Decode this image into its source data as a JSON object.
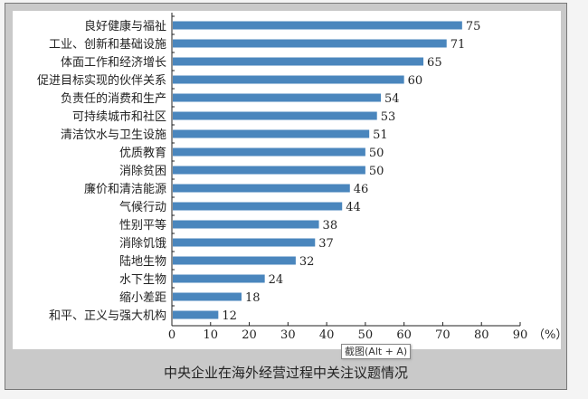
{
  "chart_data": {
    "type": "bar",
    "orientation": "horizontal",
    "title": "中央企业在海外经营过程中关注议题情况",
    "xlabel": "",
    "xunit": "（%）",
    "xlim": [
      0,
      90
    ],
    "xticks": [
      0,
      10,
      20,
      30,
      40,
      50,
      60,
      70,
      80,
      90
    ],
    "grid": false,
    "bar_color": "#4a86bd",
    "categories": [
      "良好健康与福祉",
      "工业、创新和基础设施",
      "体面工作和经济增长",
      "促进目标实现的伙伴关系",
      "负责任的消费和生产",
      "可持续城市和社区",
      "清洁饮水与卫生设施",
      "优质教育",
      "消除贫困",
      "廉价和清洁能源",
      "气候行动",
      "性别平等",
      "消除饥饿",
      "陆地生物",
      "水下生物",
      "缩小差距",
      "和平、正义与强大机构"
    ],
    "values": [
      75,
      71,
      65,
      60,
      54,
      53,
      51,
      50,
      50,
      46,
      44,
      38,
      37,
      32,
      24,
      18,
      12
    ]
  },
  "tooltip": {
    "text": "截图(Alt + A)"
  }
}
